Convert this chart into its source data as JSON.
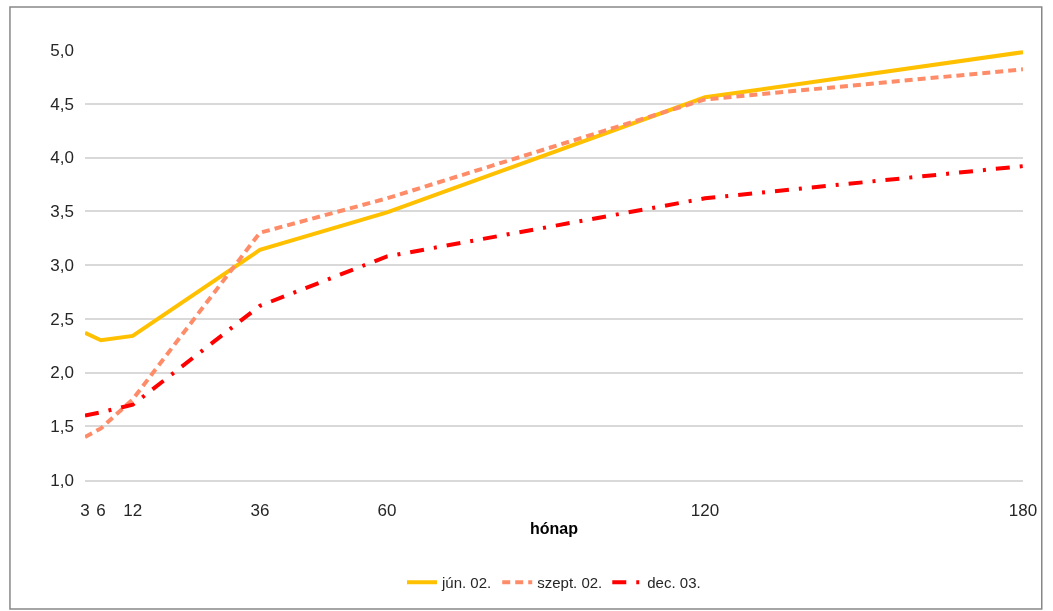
{
  "chart_data": {
    "type": "line",
    "xlabel": "hónap",
    "x": [
      3,
      6,
      12,
      36,
      60,
      120,
      180
    ],
    "series": [
      {
        "name": "jún. 02.",
        "color": "#ffc000",
        "line_style": "solid",
        "values": [
          2.37,
          2.3,
          2.34,
          3.14,
          3.49,
          4.56,
          4.98
        ]
      },
      {
        "name": "szept. 02.",
        "color": "#ff8c69",
        "line_style": "dashed",
        "values": [
          1.4,
          1.48,
          1.75,
          3.3,
          3.62,
          4.54,
          4.82
        ]
      },
      {
        "name": "dec. 03.",
        "color": "#ff0000",
        "line_style": "dashdot",
        "values": [
          1.6,
          1.63,
          1.7,
          2.62,
          3.08,
          3.62,
          3.92
        ]
      }
    ],
    "xlim": [
      3,
      180
    ],
    "xticks": [
      3,
      6,
      12,
      36,
      60,
      120,
      180
    ],
    "ylim": [
      1.0,
      5.0
    ],
    "yticks": [
      {
        "value": 1.0,
        "label": "1,0"
      },
      {
        "value": 1.5,
        "label": "1,5"
      },
      {
        "value": 2.0,
        "label": "2,0"
      },
      {
        "value": 2.5,
        "label": "2,5"
      },
      {
        "value": 3.0,
        "label": "3,0"
      },
      {
        "value": 3.5,
        "label": "3,5"
      },
      {
        "value": 4.0,
        "label": "4,0"
      },
      {
        "value": 4.5,
        "label": "4,5"
      },
      {
        "value": 5.0,
        "label": "5,0"
      }
    ],
    "grid": "y",
    "legend": "bottom"
  }
}
